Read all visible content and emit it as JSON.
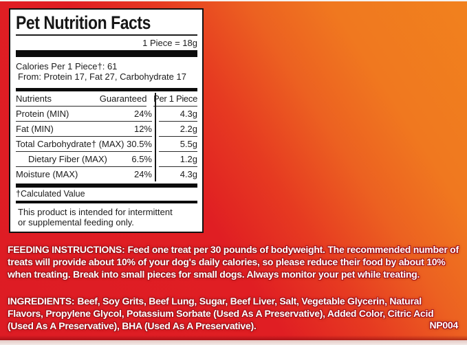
{
  "panel": {
    "title": "Pet Nutrition Facts",
    "serving": "1 Piece = 18g",
    "calories_line1": "Calories Per 1 Piece†: 61",
    "calories_line2": "From: Protein 17, Fat 27, Carbohydrate 17",
    "table": {
      "headers": {
        "nutrients": "Nutrients",
        "guaranteed": "Guaranteed",
        "per_piece": "Per 1 Piece"
      },
      "rows": [
        {
          "name": "Protein (MIN)",
          "guaranteed": "24%",
          "per_piece": "4.3g"
        },
        {
          "name": "Fat (MIN)",
          "guaranteed": "12%",
          "per_piece": "2.2g"
        },
        {
          "name": "Total Carbohydrate† (MAX)",
          "guaranteed": "30.5%",
          "per_piece": "5.5g"
        },
        {
          "name": "Dietary Fiber (MAX)",
          "guaranteed": "6.5%",
          "per_piece": "1.2g"
        },
        {
          "name": "Moisture (MAX)",
          "guaranteed": "24%",
          "per_piece": "4.3g"
        }
      ]
    },
    "footnote": "†Calculated Value",
    "statement": "This product is intended for intermittent\nor supplemental feeding only."
  },
  "feeding": {
    "heading": "FEEDING INSTRUCTIONS:",
    "body": "Feed one treat per 30 pounds of bodyweight. The recommended number of treats will provide about 10% of your dog's daily calories, so please reduce their food by about 10% when treating. Break into small pieces for small dogs. Always monitor your pet while treating."
  },
  "ingredients": {
    "heading": "INGREDIENTS:",
    "body": "Beef, Soy Grits, Beef Lung, Sugar, Beef Liver, Salt, Vegetable Glycerin, Natural Flavors, Propylene Glycol, Potassium Sorbate (Used As A Preservative), Added Color, Citric Acid (Used As A Preservative), BHA (Used As A Preservative).",
    "code": "NP004"
  },
  "colors": {
    "background_red": "#e01e23",
    "background_orange": "#f0781f",
    "panel_background": "#ffffff",
    "panel_border": "#121212",
    "text_dark": "#1b1b1b",
    "red_zone_text": "#ffffff",
    "red_zone_outline": "#a11118"
  }
}
